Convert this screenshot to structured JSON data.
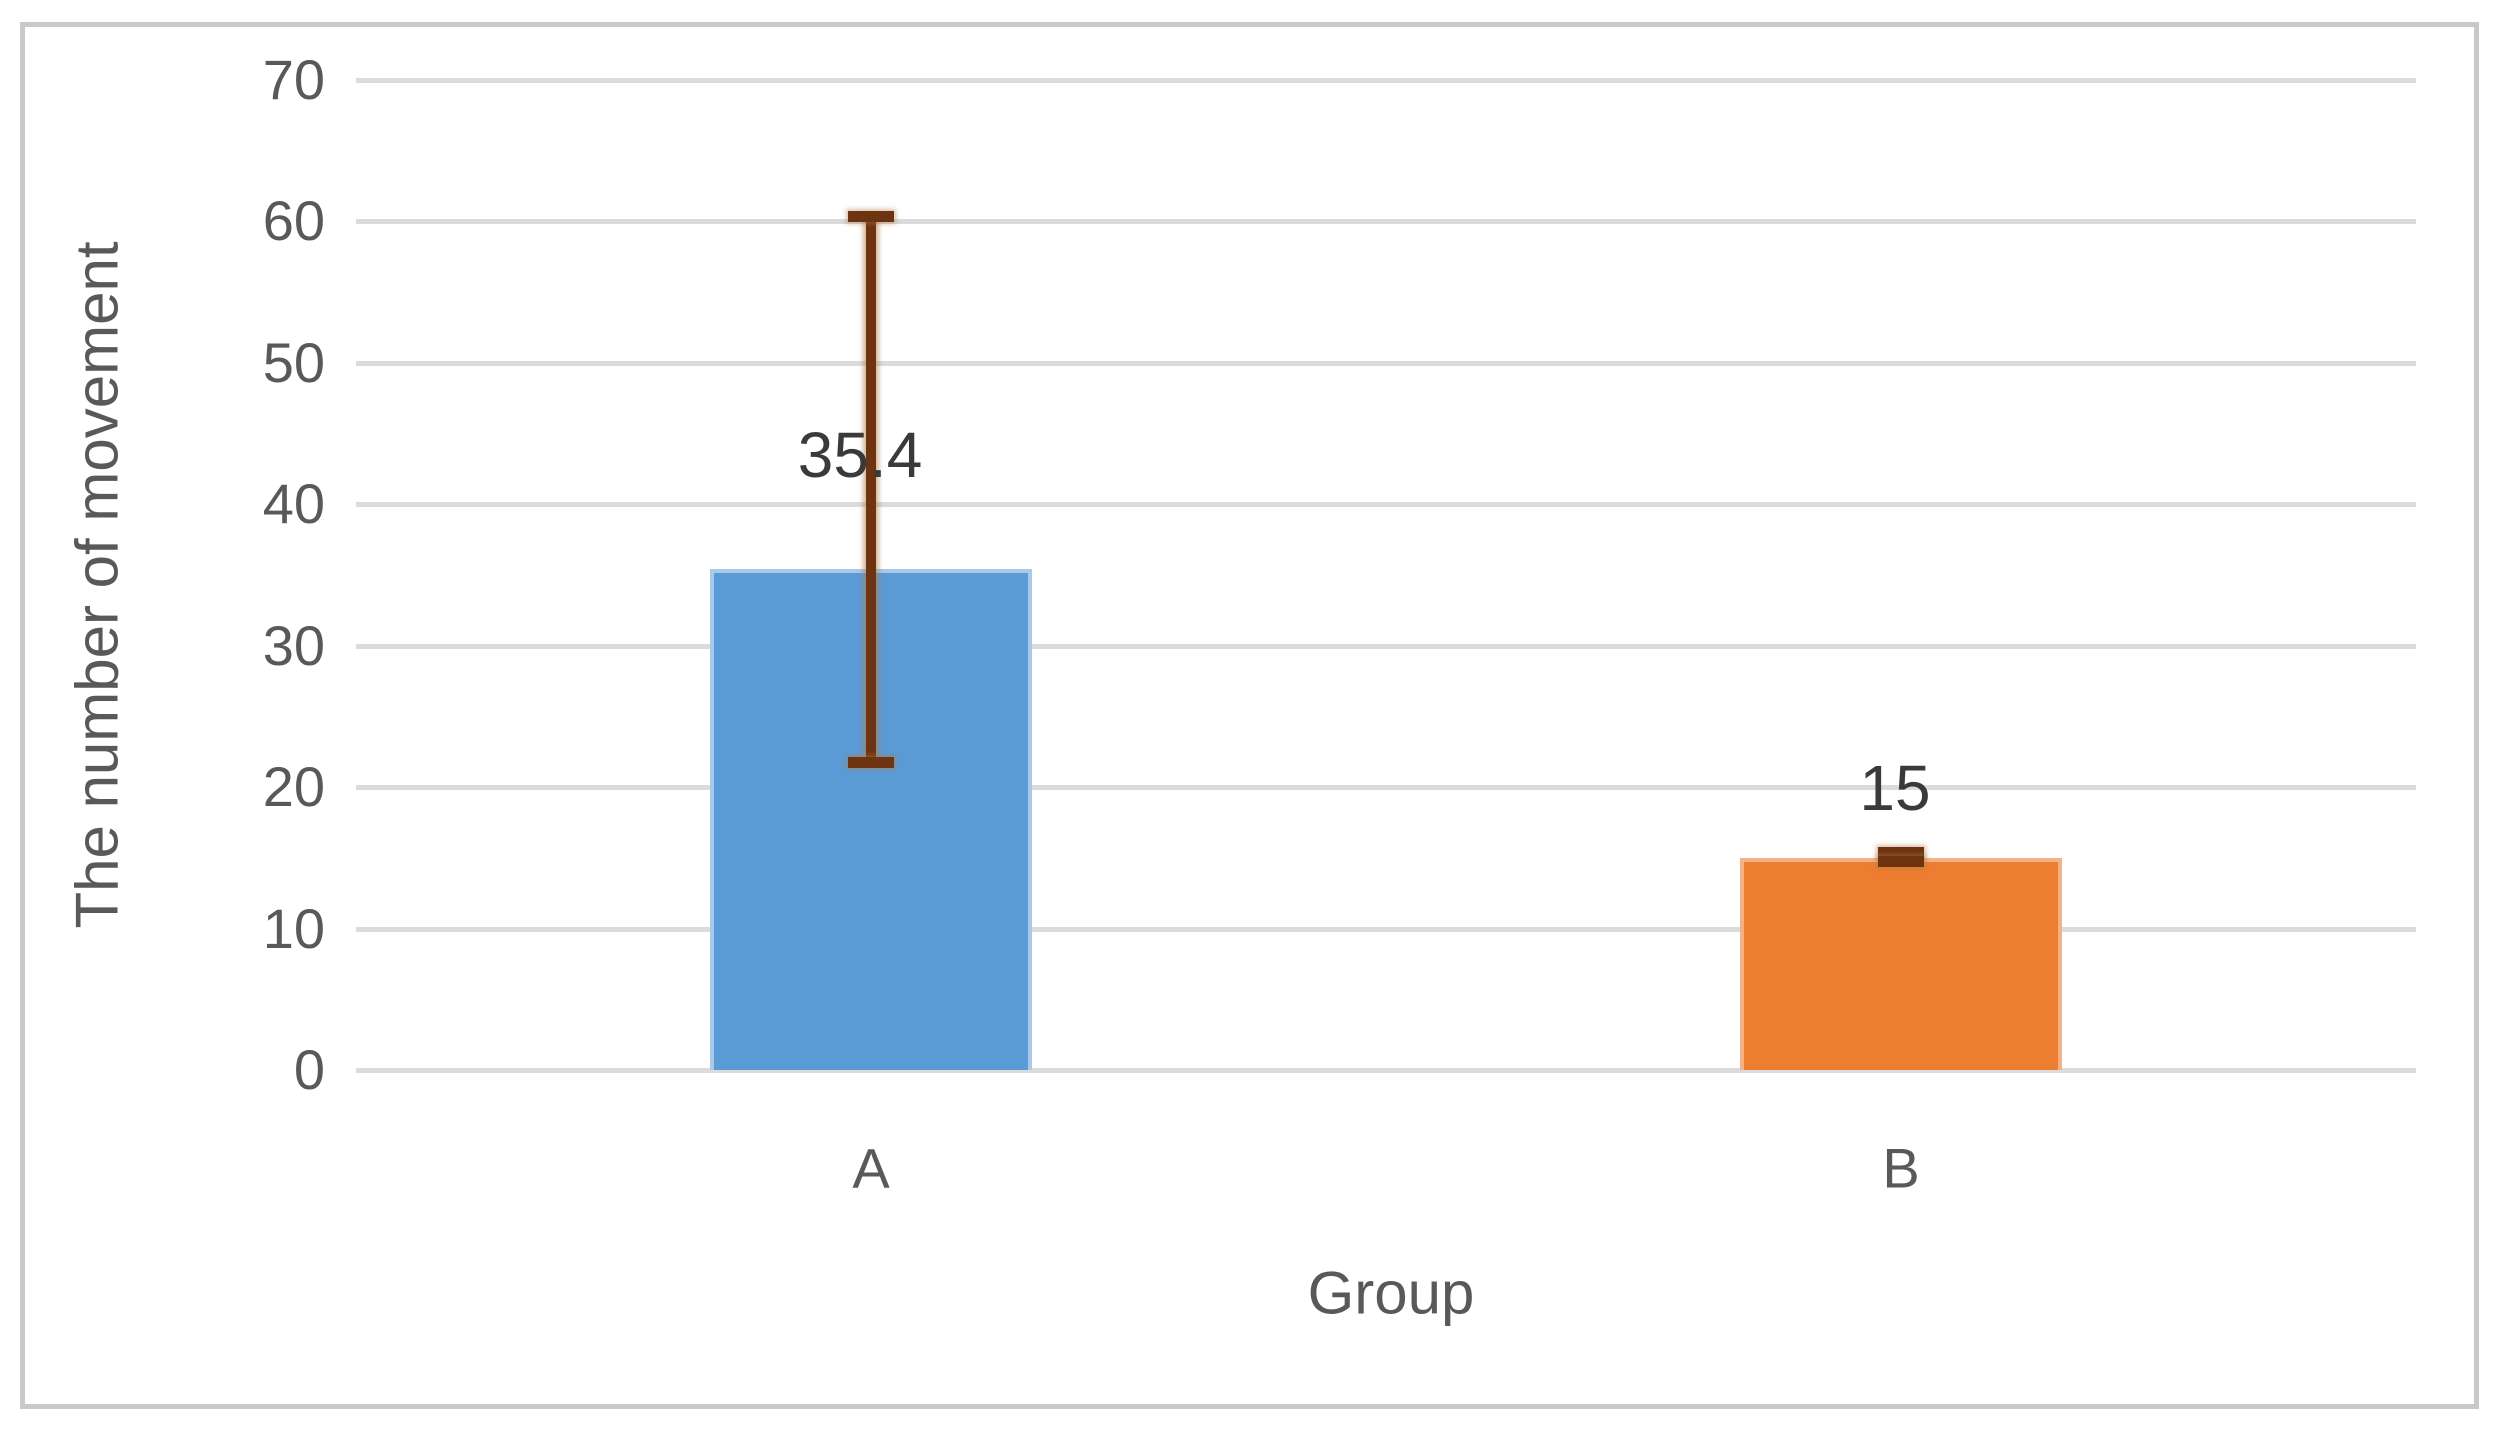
{
  "frame": {
    "border_color": "#c9c9c9",
    "background_color": "#ffffff"
  },
  "chart_data": {
    "type": "bar",
    "title": "",
    "xlabel": "Group",
    "ylabel": "The number of movement",
    "categories": [
      "A",
      "B"
    ],
    "values": [
      35.4,
      15
    ],
    "data_labels": [
      "35.4",
      "15"
    ],
    "error_bars": [
      {
        "low": 21.8,
        "high": 60.3
      },
      {
        "low": 14.8,
        "high": 15.35
      }
    ],
    "bar_colors": [
      "#5B9BD5",
      "#ED7D31"
    ],
    "bar_edge_colors": [
      "#A9C9E8",
      "#F4B183"
    ],
    "error_bar_color": "#6E3310",
    "gridline_color": "#dbdbdb",
    "tick_label_color": "#595959",
    "data_label_color": "#3a3a3a",
    "ylim": [
      0,
      70
    ],
    "ytick_interval": 10,
    "yticks": [
      "0",
      "10",
      "20",
      "30",
      "40",
      "50",
      "60",
      "70"
    ],
    "grid": true,
    "legend": "none"
  }
}
